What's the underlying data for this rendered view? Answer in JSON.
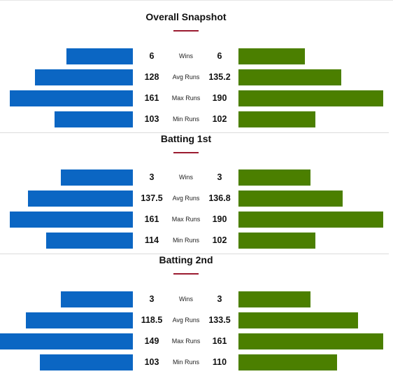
{
  "colors": {
    "team1": "#0b66c3",
    "team2": "#4b7f00",
    "accent": "#9b1b30"
  },
  "sections": [
    {
      "title": "Overall Snapshot",
      "rows": [
        {
          "label": "Wins",
          "left": "6",
          "right": "6"
        },
        {
          "label": "Avg Runs",
          "left": "128",
          "right": "135.2"
        },
        {
          "label": "Max Runs",
          "left": "161",
          "right": "190"
        },
        {
          "label": "Min Runs",
          "left": "103",
          "right": "102"
        }
      ]
    },
    {
      "title": "Batting 1st",
      "rows": [
        {
          "label": "Wins",
          "left": "3",
          "right": "3"
        },
        {
          "label": "Avg Runs",
          "left": "137.5",
          "right": "136.8"
        },
        {
          "label": "Max Runs",
          "left": "161",
          "right": "190"
        },
        {
          "label": "Min Runs",
          "left": "114",
          "right": "102"
        }
      ]
    },
    {
      "title": "Batting 2nd",
      "rows": [
        {
          "label": "Wins",
          "left": "3",
          "right": "3"
        },
        {
          "label": "Avg Runs",
          "left": "118.5",
          "right": "133.5"
        },
        {
          "label": "Max Runs",
          "left": "149",
          "right": "161"
        },
        {
          "label": "Min Runs",
          "left": "103",
          "right": "110"
        }
      ]
    }
  ]
}
